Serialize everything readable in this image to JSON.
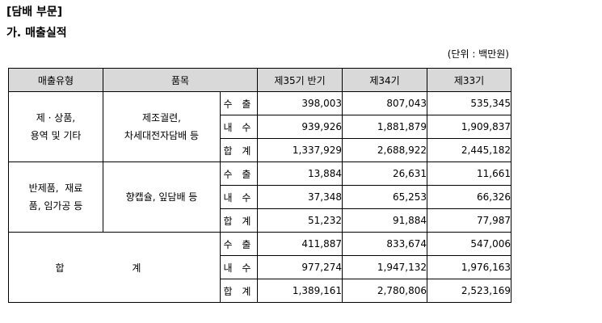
{
  "section_title": "[담배 부문]",
  "subsection_title": "가. 매출실적",
  "unit_note": "(단위 : 백만원)",
  "headers": {
    "sales_type": "매출유형",
    "item": "품목",
    "period1": "제35기 반기",
    "period2": "제34기",
    "period3": "제33기"
  },
  "groups": [
    {
      "type_lines": [
        "제 · 상품,",
        "용역 및 기타"
      ],
      "item_lines": [
        "제조궐련,",
        "차세대전자담배 등"
      ],
      "rows": [
        {
          "kind": "수 출",
          "v1": "398,003",
          "v2": "807,043",
          "v3": "535,345"
        },
        {
          "kind": "내 수",
          "v1": "939,926",
          "v2": "1,881,879",
          "v3": "1,909,837"
        },
        {
          "kind": "합 계",
          "v1": "1,337,929",
          "v2": "2,688,922",
          "v3": "2,445,182"
        }
      ]
    },
    {
      "type_lines": [
        "반제품,  재료",
        "품, 임가공 등"
      ],
      "item_lines": [
        "향캡슐, 잎담배 등"
      ],
      "rows": [
        {
          "kind": "수 출",
          "v1": "13,884",
          "v2": "26,631",
          "v3": "11,661"
        },
        {
          "kind": "내 수",
          "v1": "37,348",
          "v2": "65,253",
          "v3": "66,326"
        },
        {
          "kind": "합 계",
          "v1": "51,232",
          "v2": "91,884",
          "v3": "77,987"
        }
      ]
    },
    {
      "type_lines": [
        "합 계"
      ],
      "rows": [
        {
          "kind": "수 출",
          "v1": "411,887",
          "v2": "833,674",
          "v3": "547,006"
        },
        {
          "kind": "내 수",
          "v1": "977,274",
          "v2": "1,947,132",
          "v3": "1,976,163"
        },
        {
          "kind": "합 계",
          "v1": "1,389,161",
          "v2": "2,780,806",
          "v3": "2,523,169"
        }
      ]
    }
  ]
}
